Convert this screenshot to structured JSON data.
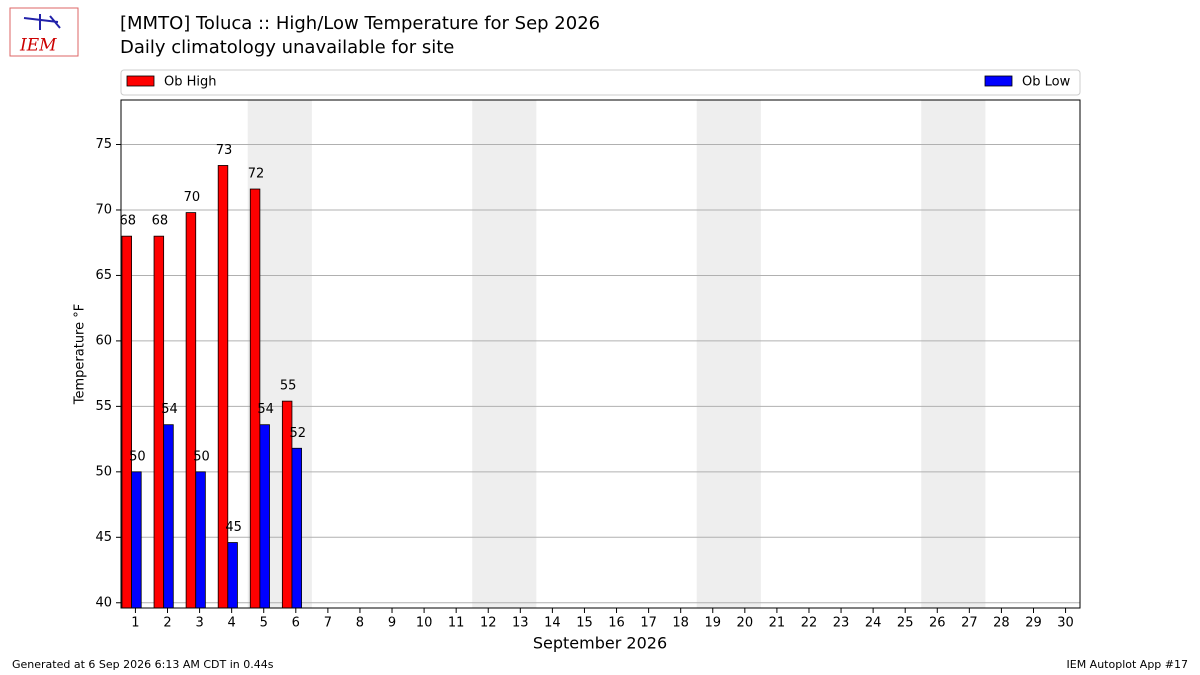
{
  "logo": "IEM",
  "chart_data": {
    "type": "bar",
    "title": "[MMTO] Toluca :: High/Low Temperature for Sep 2026",
    "subtitle": "Daily climatology unavailable for site",
    "ylabel": "Temperature °F",
    "xlabel": "September 2026",
    "x": [
      1,
      2,
      3,
      4,
      5,
      6
    ],
    "series": [
      {
        "name": "Ob High",
        "color": "#ff0000",
        "values": [
          68.0,
          68.0,
          69.8,
          73.4,
          71.6,
          55.4
        ],
        "value_labels": [
          "68",
          "68",
          "70",
          "73",
          "72",
          "55"
        ]
      },
      {
        "name": "Ob Low",
        "color": "#0000ff",
        "values": [
          50.0,
          53.6,
          50.0,
          44.6,
          53.6,
          51.8
        ],
        "value_labels": [
          "50",
          "54",
          "50",
          "45",
          "54",
          "52"
        ]
      }
    ],
    "xlim": [
      0.55,
      30.45
    ],
    "xticks": [
      1,
      2,
      3,
      4,
      5,
      6,
      7,
      8,
      9,
      10,
      11,
      12,
      13,
      14,
      15,
      16,
      17,
      18,
      19,
      20,
      21,
      22,
      23,
      24,
      25,
      26,
      27,
      28,
      29,
      30
    ],
    "ylim": [
      39.6,
      78.4
    ],
    "yticks": [
      40,
      45,
      50,
      55,
      60,
      65,
      70,
      75
    ],
    "grid": true,
    "weekend_shading": [
      [
        4.5,
        6.5
      ],
      [
        11.5,
        13.5
      ],
      [
        18.5,
        20.5
      ],
      [
        25.5,
        27.5
      ]
    ],
    "shading_color": "#eeeeee"
  },
  "footer": {
    "left": "Generated at 6 Sep 2026 6:13 AM CDT in 0.44s",
    "right": "IEM Autoplot App #17"
  }
}
